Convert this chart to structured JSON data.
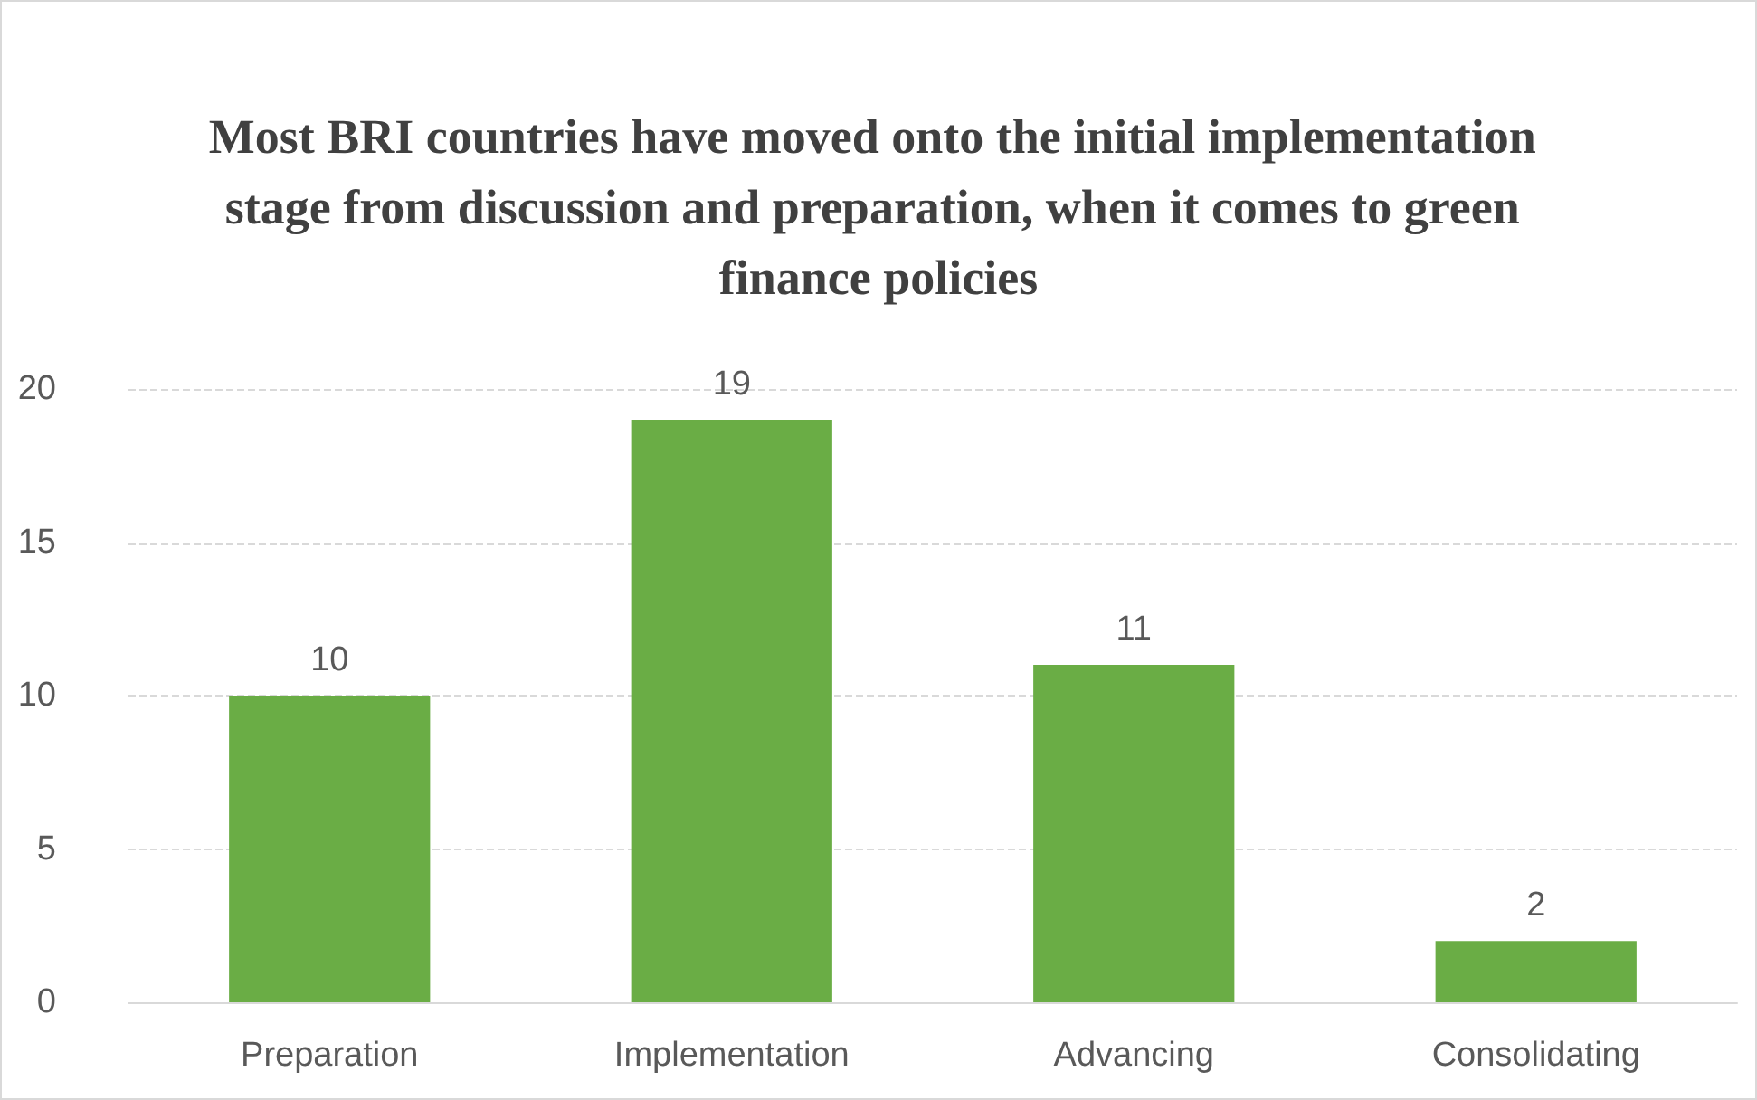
{
  "chart_data": {
    "type": "bar",
    "title": "Most BRI countries have moved onto the initial implementation stage from discussion and preparation, when it comes to green finance policies",
    "categories": [
      "Preparation",
      "Implementation",
      "Advancing",
      "Consolidating"
    ],
    "values": [
      10,
      19,
      11,
      2
    ],
    "color": "#6aad45",
    "ylim": [
      0,
      20
    ],
    "yticks": [
      0,
      5,
      10,
      15,
      20
    ],
    "grid": "y",
    "data_labels": true
  }
}
